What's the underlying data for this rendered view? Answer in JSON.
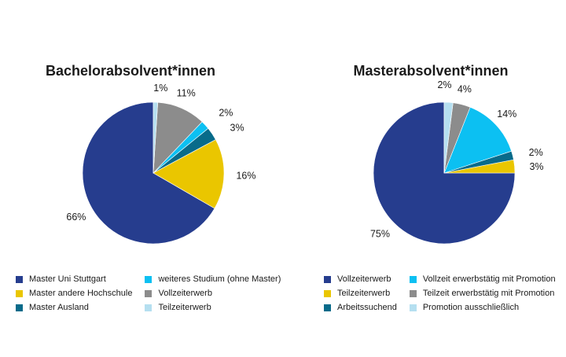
{
  "colors": {
    "navy": "#263d8e",
    "yellow": "#eac600",
    "teal": "#086b8a",
    "cyan": "#0cc0f2",
    "gray": "#8c8c8c",
    "lightblue": "#b5dff0"
  },
  "chart_data": [
    {
      "type": "pie",
      "title": "Bachelorabsolvent*innen",
      "slices": [
        {
          "name": "Master Uni Stuttgart",
          "value": 66,
          "label": "66%",
          "color": "#263d8e"
        },
        {
          "name": "Master andere Hochschule",
          "value": 16,
          "label": "16%",
          "color": "#eac600"
        },
        {
          "name": "Master Ausland",
          "value": 3,
          "label": "3%",
          "color": "#086b8a"
        },
        {
          "name": "weiteres Studium (ohne Master)",
          "value": 2,
          "label": "2%",
          "color": "#0cc0f2"
        },
        {
          "name": "Vollzeiterwerb",
          "value": 11,
          "label": "11%",
          "color": "#8c8c8c"
        },
        {
          "name": "Teilzeiterwerb",
          "value": 1,
          "label": "1%",
          "color": "#b5dff0"
        }
      ],
      "legend": [
        {
          "label": "Master Uni Stuttgart",
          "color": "#263d8e"
        },
        {
          "label": "weiteres Studium (ohne Master)",
          "color": "#0cc0f2"
        },
        {
          "label": "Master andere Hochschule",
          "color": "#eac600"
        },
        {
          "label": "Vollzeiterwerb",
          "color": "#8c8c8c"
        },
        {
          "label": "Master Ausland",
          "color": "#086b8a"
        },
        {
          "label": "Teilzeiterwerb",
          "color": "#b5dff0"
        }
      ]
    },
    {
      "type": "pie",
      "title": "Masterabsolvent*innen",
      "slices": [
        {
          "name": "Vollzeiterwerb",
          "value": 75,
          "label": "75%",
          "color": "#263d8e"
        },
        {
          "name": "Teilzeiterwerb",
          "value": 3,
          "label": "3%",
          "color": "#eac600"
        },
        {
          "name": "Arbeitssuchend",
          "value": 2,
          "label": "2%",
          "color": "#086b8a"
        },
        {
          "name": "Vollzeit erwerbstätig mit Promotion",
          "value": 14,
          "label": "14%",
          "color": "#0cc0f2"
        },
        {
          "name": "Teilzeit erwerbstätig mit Promotion",
          "value": 4,
          "label": "4%",
          "color": "#8c8c8c"
        },
        {
          "name": "Promotion ausschließlich",
          "value": 2,
          "label": "2%",
          "color": "#b5dff0"
        }
      ],
      "legend": [
        {
          "label": "Vollzeiterwerb",
          "color": "#263d8e"
        },
        {
          "label": "Vollzeit erwerbstätig mit Promotion",
          "color": "#0cc0f2"
        },
        {
          "label": "Teilzeiterwerb",
          "color": "#eac600"
        },
        {
          "label": "Teilzeit erwerbstätig mit Promotion",
          "color": "#8c8c8c"
        },
        {
          "label": "Arbeitssuchend",
          "color": "#086b8a"
        },
        {
          "label": "Promotion ausschließlich",
          "color": "#b5dff0"
        }
      ]
    }
  ]
}
